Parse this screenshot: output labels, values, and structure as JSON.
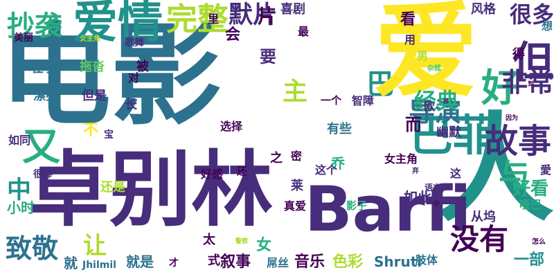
{
  "palette": {
    "dark_purple": "#440154",
    "indigo": "#472d7b",
    "blue": "#3b528b",
    "steel_blue": "#2c728e",
    "teal": "#21918c",
    "sea_green": "#28ae80",
    "green": "#5ec962",
    "yellow_green": "#addc30",
    "yellow": "#fde725"
  },
  "words": [
    {
      "text": "电影",
      "color": "steel_blue",
      "vertical": false
    },
    {
      "text": "卓别林",
      "color": "indigo",
      "vertical": false
    },
    {
      "text": "巴",
      "color": "teal",
      "vertical": true
    },
    {
      "text": "爱",
      "color": "yellow",
      "vertical": false
    },
    {
      "text": "人",
      "color": "teal",
      "vertical": false
    },
    {
      "text": "Barfi",
      "color": "indigo",
      "vertical": false
    },
    {
      "text": "爱情",
      "color": "teal",
      "vertical": false
    },
    {
      "text": "巴菲",
      "color": "teal",
      "vertical": false
    },
    {
      "text": "又",
      "color": "sea_green",
      "vertical": false
    },
    {
      "text": "好",
      "color": "sea_green",
      "vertical": false
    },
    {
      "text": "与",
      "color": "sea_green",
      "vertical": false
    },
    {
      "text": "但",
      "color": "indigo",
      "vertical": false
    },
    {
      "text": "故事",
      "color": "indigo",
      "vertical": false
    },
    {
      "text": "没有",
      "color": "dark_purple",
      "vertical": false
    },
    {
      "text": "导演",
      "color": "steel_blue",
      "vertical": false
    },
    {
      "text": "非常",
      "color": "indigo",
      "vertical": false
    },
    {
      "text": "完整",
      "color": "yellow_green",
      "vertical": false
    },
    {
      "text": "抄袭",
      "color": "sea_green",
      "vertical": false
    },
    {
      "text": "致敬",
      "color": "steel_blue",
      "vertical": false
    },
    {
      "text": "默片",
      "color": "indigo",
      "vertical": false
    },
    {
      "text": "很多",
      "color": "indigo",
      "vertical": false
    },
    {
      "text": "经典",
      "color": "sea_green",
      "vertical": false
    },
    {
      "text": "主",
      "color": "yellow_green",
      "vertical": false
    },
    {
      "text": "中",
      "color": "teal",
      "vertical": false
    },
    {
      "text": "让",
      "color": "yellow_green",
      "vertical": false
    },
    {
      "text": "片",
      "color": "dark_purple",
      "vertical": false
    },
    {
      "text": "要",
      "color": "indigo",
      "vertical": false
    },
    {
      "text": "喜剧",
      "color": "indigo",
      "vertical": false
    },
    {
      "text": "风格",
      "color": "indigo",
      "vertical": false
    },
    {
      "text": "看",
      "color": "dark_purple",
      "vertical": false
    },
    {
      "text": "里",
      "color": "dark_purple",
      "vertical": false
    },
    {
      "text": "最",
      "color": "dark_purple",
      "vertical": false
    },
    {
      "text": "会",
      "color": "dark_purple",
      "vertical": false
    },
    {
      "text": "用",
      "color": "indigo",
      "vertical": false
    },
    {
      "text": "男",
      "color": "yellow_green",
      "vertical": false
    },
    {
      "text": "想",
      "color": "steel_blue",
      "vertical": false
    },
    {
      "text": "得",
      "color": "dark_purple",
      "vertical": false
    },
    {
      "text": "美丽",
      "color": "dark_purple",
      "vertical": false
    },
    {
      "text": "女主角",
      "color": "yellow_green",
      "vertical": false
    },
    {
      "text": "歌舞",
      "color": "indigo",
      "vertical": false
    },
    {
      "text": "在于",
      "color": "steel_blue",
      "vertical": false
    },
    {
      "text": "拖沓",
      "color": "green",
      "vertical": false
    },
    {
      "text": "被",
      "color": "dark_purple",
      "vertical": false
    },
    {
      "text": "杂糅",
      "color": "green",
      "vertical": false
    },
    {
      "text": "对",
      "color": "dark_purple",
      "vertical": false
    },
    {
      "text": "漂亮",
      "color": "steel_blue",
      "vertical": false
    },
    {
      "text": "但是",
      "color": "indigo",
      "vertical": false
    },
    {
      "text": "长",
      "color": "indigo",
      "vertical": false
    },
    {
      "text": "一个",
      "color": "dark_purple",
      "vertical": false
    },
    {
      "text": "智障",
      "color": "indigo",
      "vertical": false
    },
    {
      "text": "欧",
      "color": "indigo",
      "vertical": false
    },
    {
      "text": "到",
      "color": "dark_purple",
      "vertical": false
    },
    {
      "text": "不",
      "color": "yellow",
      "vertical": false
    },
    {
      "text": "宝",
      "color": "indigo",
      "vertical": false
    },
    {
      "text": "有些",
      "color": "steel_blue",
      "vertical": false
    },
    {
      "text": "而",
      "color": "dark_purple",
      "vertical": false
    },
    {
      "text": "选择",
      "color": "dark_purple",
      "vertical": false
    },
    {
      "text": "幽默",
      "color": "indigo",
      "vertical": false
    },
    {
      "text": "因为",
      "color": "dark_purple",
      "vertical": false
    },
    {
      "text": "如同",
      "color": "indigo",
      "vertical": false
    },
    {
      "text": "很棒",
      "color": "indigo",
      "vertical": false
    },
    {
      "text": "好感",
      "color": "dark_purple",
      "vertical": false
    },
    {
      "text": "还",
      "color": "dark_purple",
      "vertical": false
    },
    {
      "text": "之",
      "color": "dark_purple",
      "vertical": false
    },
    {
      "text": "密",
      "color": "dark_purple",
      "vertical": false
    },
    {
      "text": "乔",
      "color": "sea_green",
      "vertical": false
    },
    {
      "text": "这个",
      "color": "indigo",
      "vertical": false
    },
    {
      "text": "女主角",
      "color": "dark_purple",
      "vertical": false
    },
    {
      "text": "弃",
      "color": "indigo",
      "vertical": false
    },
    {
      "text": "这",
      "color": "indigo",
      "vertical": false
    },
    {
      "text": "愛",
      "color": "indigo",
      "vertical": false
    },
    {
      "text": "还是",
      "color": "yellow_green",
      "vertical": false
    },
    {
      "text": "小时",
      "color": "sea_green",
      "vertical": false
    },
    {
      "text": "真爱",
      "color": "dark_purple",
      "vertical": false
    },
    {
      "text": "莱",
      "color": "indigo",
      "vertical": false
    },
    {
      "text": "语言",
      "color": "indigo",
      "vertical": false
    },
    {
      "text": "如此",
      "color": "indigo",
      "vertical": false
    },
    {
      "text": "好看",
      "color": "sea_green",
      "vertical": false
    },
    {
      "text": "哑巴",
      "color": "sea_green",
      "vertical": false
    },
    {
      "text": "小",
      "color": "dark_purple",
      "vertical": false
    },
    {
      "text": "影子",
      "color": "sea_green",
      "vertical": false
    },
    {
      "text": "从坞",
      "color": "indigo",
      "vertical": false
    },
    {
      "text": "太",
      "color": "dark_purple",
      "vertical": false
    },
    {
      "text": "就",
      "color": "steel_blue",
      "vertical": false
    },
    {
      "text": "就是",
      "color": "steel_blue",
      "vertical": false
    },
    {
      "text": "女",
      "color": "sea_green",
      "vertical": false
    },
    {
      "text": "音乐",
      "color": "dark_purple",
      "vertical": false
    },
    {
      "text": "色彩",
      "color": "yellow_green",
      "vertical": false
    },
    {
      "text": "Shruti",
      "color": "steel_blue",
      "vertical": false
    },
    {
      "text": "肢体",
      "color": "steel_blue",
      "vertical": false
    },
    {
      "text": "一部",
      "color": "teal",
      "vertical": false
    },
    {
      "text": "怎么",
      "color": "dark_purple",
      "vertical": false
    },
    {
      "text": "式",
      "color": "dark_purple",
      "vertical": false
    },
    {
      "text": "叙事",
      "color": "dark_purple",
      "vertical": false
    },
    {
      "text": "屌丝",
      "color": "steel_blue",
      "vertical": false
    },
    {
      "text": "Jhilmil",
      "color": "steel_blue",
      "vertical": false
    },
    {
      "text": "警察",
      "color": "yellow_green",
      "vertical": false
    },
    {
      "text": "才",
      "color": "dark_purple",
      "vertical": false
    },
    {
      "text": "胖",
      "color": "indigo",
      "vertical": false
    }
  ]
}
